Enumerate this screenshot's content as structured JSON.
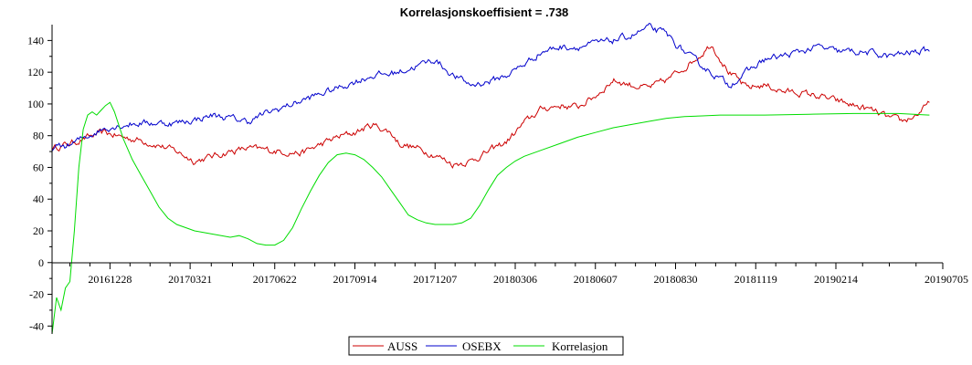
{
  "chart_data": {
    "type": "line",
    "title": "Korrelasjonskoeffisient =  .738",
    "xlabel": "",
    "ylabel": "",
    "ylim": [
      -45,
      150
    ],
    "yticks": [
      -40,
      -20,
      0,
      20,
      40,
      60,
      80,
      100,
      120,
      140
    ],
    "x_tick_labels": [
      "20161228",
      "20170321",
      "20170622",
      "20170914",
      "20171207",
      "20180306",
      "20180607",
      "20180830",
      "20181119",
      "20190214",
      "20190705"
    ],
    "x_tick_positions": [
      0.065,
      0.155,
      0.25,
      0.34,
      0.43,
      0.52,
      0.61,
      0.7,
      0.79,
      0.88,
      1.0
    ],
    "xlim": [
      0,
      1
    ],
    "legend_position": "bottom-center",
    "series": [
      {
        "name": "AUSS",
        "color": "#cc0000",
        "noise": 1.6,
        "points": [
          [
            0.0,
            72
          ],
          [
            0.02,
            75
          ],
          [
            0.04,
            79
          ],
          [
            0.06,
            82
          ],
          [
            0.065,
            81
          ],
          [
            0.08,
            79
          ],
          [
            0.1,
            77
          ],
          [
            0.12,
            74
          ],
          [
            0.14,
            70
          ],
          [
            0.16,
            64
          ],
          [
            0.18,
            67
          ],
          [
            0.2,
            70
          ],
          [
            0.22,
            72
          ],
          [
            0.24,
            71
          ],
          [
            0.26,
            70
          ],
          [
            0.28,
            69
          ],
          [
            0.3,
            74
          ],
          [
            0.32,
            79
          ],
          [
            0.34,
            82
          ],
          [
            0.36,
            87
          ],
          [
            0.38,
            82
          ],
          [
            0.39,
            75
          ],
          [
            0.41,
            72
          ],
          [
            0.43,
            68
          ],
          [
            0.45,
            62
          ],
          [
            0.47,
            64
          ],
          [
            0.49,
            70
          ],
          [
            0.51,
            76
          ],
          [
            0.53,
            88
          ],
          [
            0.55,
            97
          ],
          [
            0.57,
            99
          ],
          [
            0.59,
            98
          ],
          [
            0.61,
            105
          ],
          [
            0.63,
            115
          ],
          [
            0.65,
            112
          ],
          [
            0.67,
            110
          ],
          [
            0.69,
            115
          ],
          [
            0.71,
            123
          ],
          [
            0.73,
            132
          ],
          [
            0.74,
            138
          ],
          [
            0.76,
            120
          ],
          [
            0.78,
            110
          ],
          [
            0.8,
            112
          ],
          [
            0.82,
            108
          ],
          [
            0.84,
            107
          ],
          [
            0.86,
            105
          ],
          [
            0.88,
            102
          ],
          [
            0.9,
            99
          ],
          [
            0.92,
            96
          ],
          [
            0.94,
            91
          ],
          [
            0.955,
            89
          ],
          [
            0.97,
            93
          ],
          [
            0.985,
            100
          ]
        ]
      },
      {
        "name": "OSEBX",
        "color": "#0000cc",
        "noise": 1.6,
        "points": [
          [
            0.0,
            72
          ],
          [
            0.02,
            74
          ],
          [
            0.04,
            80
          ],
          [
            0.06,
            85
          ],
          [
            0.08,
            87
          ],
          [
            0.1,
            88
          ],
          [
            0.12,
            88
          ],
          [
            0.14,
            88
          ],
          [
            0.16,
            90
          ],
          [
            0.18,
            93
          ],
          [
            0.2,
            91
          ],
          [
            0.22,
            89
          ],
          [
            0.24,
            94
          ],
          [
            0.26,
            98
          ],
          [
            0.28,
            102
          ],
          [
            0.3,
            106
          ],
          [
            0.32,
            110
          ],
          [
            0.34,
            114
          ],
          [
            0.36,
            118
          ],
          [
            0.38,
            119
          ],
          [
            0.4,
            122
          ],
          [
            0.42,
            126
          ],
          [
            0.43,
            128
          ],
          [
            0.45,
            118
          ],
          [
            0.47,
            112
          ],
          [
            0.49,
            114
          ],
          [
            0.51,
            118
          ],
          [
            0.53,
            125
          ],
          [
            0.55,
            133
          ],
          [
            0.57,
            136
          ],
          [
            0.59,
            136
          ],
          [
            0.61,
            138
          ],
          [
            0.63,
            140
          ],
          [
            0.65,
            143
          ],
          [
            0.67,
            148
          ],
          [
            0.69,
            144
          ],
          [
            0.7,
            138
          ],
          [
            0.72,
            128
          ],
          [
            0.74,
            120
          ],
          [
            0.76,
            112
          ],
          [
            0.78,
            120
          ],
          [
            0.8,
            128
          ],
          [
            0.82,
            130
          ],
          [
            0.84,
            133
          ],
          [
            0.86,
            136
          ],
          [
            0.88,
            133
          ],
          [
            0.9,
            133
          ],
          [
            0.92,
            132
          ],
          [
            0.94,
            130
          ],
          [
            0.96,
            132
          ],
          [
            0.985,
            134
          ]
        ]
      },
      {
        "name": "Korrelasjon",
        "color": "#00dd00",
        "noise": 0,
        "points": [
          [
            0.0,
            -45
          ],
          [
            0.005,
            -22
          ],
          [
            0.01,
            -30
          ],
          [
            0.015,
            -16
          ],
          [
            0.02,
            -12
          ],
          [
            0.025,
            20
          ],
          [
            0.03,
            60
          ],
          [
            0.035,
            84
          ],
          [
            0.04,
            93
          ],
          [
            0.045,
            95
          ],
          [
            0.05,
            93
          ],
          [
            0.055,
            96
          ],
          [
            0.06,
            99
          ],
          [
            0.065,
            101
          ],
          [
            0.07,
            95
          ],
          [
            0.08,
            78
          ],
          [
            0.09,
            65
          ],
          [
            0.1,
            55
          ],
          [
            0.11,
            45
          ],
          [
            0.12,
            35
          ],
          [
            0.13,
            28
          ],
          [
            0.14,
            24
          ],
          [
            0.15,
            22
          ],
          [
            0.16,
            20
          ],
          [
            0.17,
            19
          ],
          [
            0.18,
            18
          ],
          [
            0.19,
            17
          ],
          [
            0.2,
            16
          ],
          [
            0.21,
            17
          ],
          [
            0.22,
            15
          ],
          [
            0.23,
            12
          ],
          [
            0.24,
            11
          ],
          [
            0.25,
            11
          ],
          [
            0.26,
            14
          ],
          [
            0.27,
            22
          ],
          [
            0.28,
            34
          ],
          [
            0.29,
            45
          ],
          [
            0.3,
            55
          ],
          [
            0.31,
            63
          ],
          [
            0.32,
            68
          ],
          [
            0.33,
            69
          ],
          [
            0.34,
            68
          ],
          [
            0.35,
            65
          ],
          [
            0.36,
            60
          ],
          [
            0.37,
            54
          ],
          [
            0.38,
            46
          ],
          [
            0.39,
            38
          ],
          [
            0.4,
            30
          ],
          [
            0.41,
            27
          ],
          [
            0.42,
            25
          ],
          [
            0.43,
            24
          ],
          [
            0.44,
            24
          ],
          [
            0.45,
            24
          ],
          [
            0.46,
            25
          ],
          [
            0.47,
            28
          ],
          [
            0.48,
            36
          ],
          [
            0.49,
            46
          ],
          [
            0.5,
            55
          ],
          [
            0.51,
            60
          ],
          [
            0.52,
            64
          ],
          [
            0.53,
            67
          ],
          [
            0.55,
            71
          ],
          [
            0.57,
            75
          ],
          [
            0.59,
            79
          ],
          [
            0.61,
            82
          ],
          [
            0.63,
            85
          ],
          [
            0.65,
            87
          ],
          [
            0.67,
            89
          ],
          [
            0.69,
            91
          ],
          [
            0.71,
            92
          ],
          [
            0.73,
            92.5
          ],
          [
            0.75,
            93
          ],
          [
            0.8,
            93
          ],
          [
            0.85,
            93.5
          ],
          [
            0.9,
            94
          ],
          [
            0.95,
            94
          ],
          [
            0.985,
            93
          ]
        ]
      }
    ]
  }
}
